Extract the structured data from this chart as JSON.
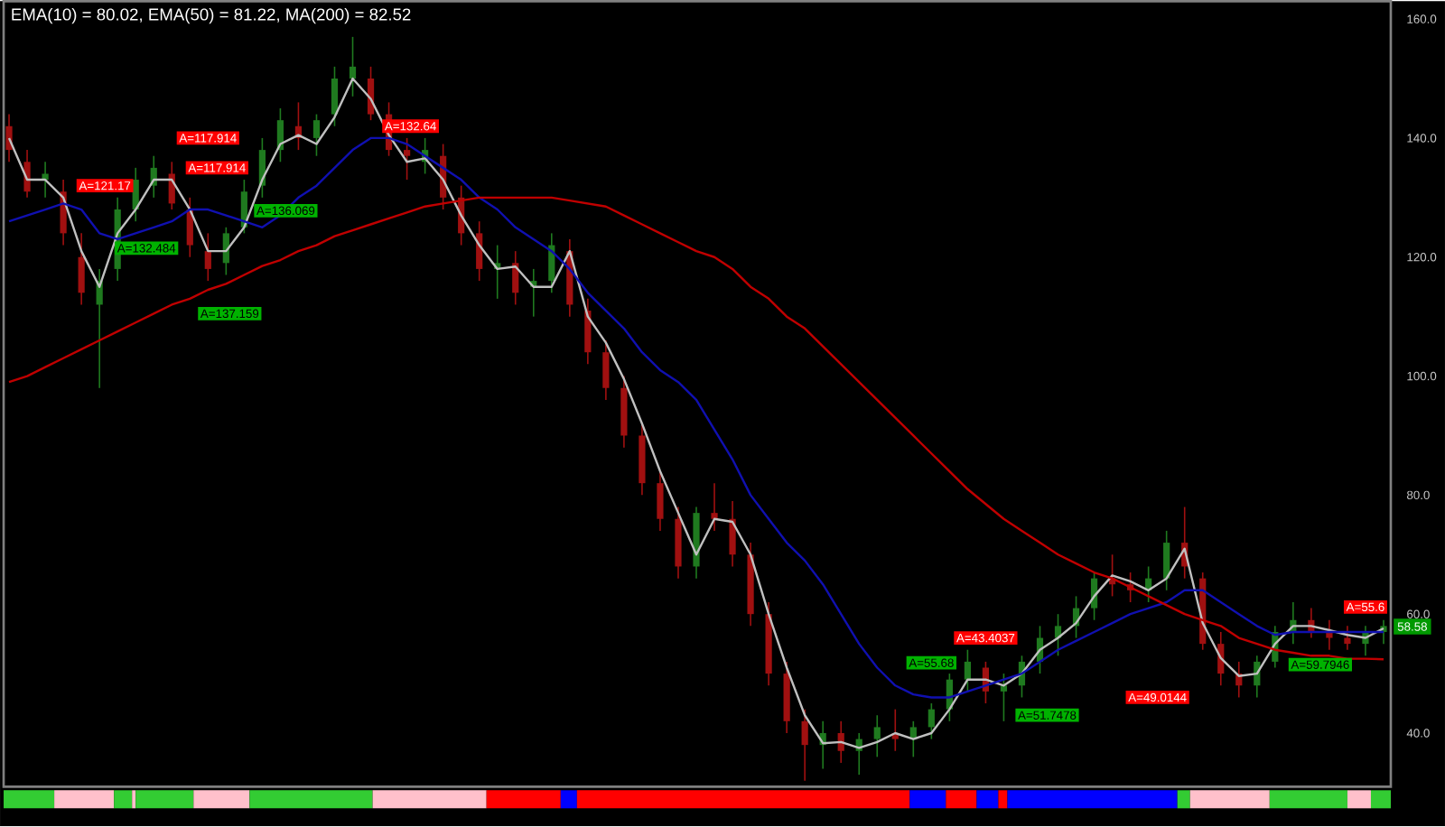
{
  "chart_data": {
    "type": "candlestick",
    "title": "EMA(10) = 80.02, EMA(50) = 81.22, MA(200) = 82.52",
    "categories": [
      null,
      null,
      null,
      null,
      null,
      null,
      null,
      null,
      null,
      null,
      null,
      null,
      null,
      null,
      null,
      null,
      null,
      null,
      null,
      null,
      null,
      null,
      null,
      null,
      null,
      null,
      null,
      null,
      null,
      null,
      null,
      null,
      null,
      null,
      null,
      null,
      null,
      null,
      null,
      null,
      null,
      null,
      null,
      null,
      null,
      null,
      null,
      null,
      null,
      null,
      null,
      null,
      null,
      null,
      null,
      null,
      null,
      null,
      null,
      null,
      null,
      null,
      null,
      null,
      null,
      null,
      null,
      null,
      null,
      null,
      null,
      null,
      null,
      null,
      null,
      null,
      null
    ],
    "ohlc": [
      [
        142,
        144,
        136,
        138
      ],
      [
        136,
        138,
        130,
        131
      ],
      [
        133,
        136,
        130,
        134
      ],
      [
        131,
        133,
        122,
        124
      ],
      [
        120,
        124,
        112,
        114
      ],
      [
        112,
        118,
        98,
        116
      ],
      [
        118,
        130,
        116,
        128
      ],
      [
        128,
        135,
        126,
        133
      ],
      [
        132,
        137,
        130,
        135
      ],
      [
        134,
        136,
        128,
        129
      ],
      [
        128,
        130,
        120,
        122
      ],
      [
        121,
        124,
        116,
        118
      ],
      [
        119,
        125,
        117,
        124
      ],
      [
        125,
        133,
        124,
        131
      ],
      [
        132,
        140,
        130,
        138
      ],
      [
        138,
        145,
        136,
        143
      ],
      [
        142,
        146,
        138,
        140
      ],
      [
        140,
        144,
        137,
        143
      ],
      [
        144,
        152,
        142,
        150
      ],
      [
        150,
        157,
        147,
        152
      ],
      [
        150,
        152,
        143,
        144
      ],
      [
        144,
        146,
        137,
        138
      ],
      [
        138,
        140,
        133,
        137
      ],
      [
        136,
        140,
        134,
        138
      ],
      [
        137,
        139,
        128,
        130
      ],
      [
        130,
        132,
        122,
        124
      ],
      [
        124,
        126,
        116,
        118
      ],
      [
        118,
        122,
        113,
        119
      ],
      [
        119,
        121,
        112,
        114
      ],
      [
        115,
        118,
        110,
        116
      ],
      [
        116,
        124,
        114,
        122
      ],
      [
        121,
        123,
        110,
        112
      ],
      [
        111,
        113,
        102,
        104
      ],
      [
        104,
        106,
        96,
        98
      ],
      [
        98,
        100,
        88,
        90
      ],
      [
        90,
        92,
        80,
        82
      ],
      [
        82,
        84,
        74,
        76
      ],
      [
        76,
        78,
        66,
        68
      ],
      [
        68,
        78,
        66,
        77
      ],
      [
        77,
        82,
        74,
        76
      ],
      [
        76,
        79,
        68,
        70
      ],
      [
        70,
        72,
        58,
        60
      ],
      [
        60,
        62,
        48,
        50
      ],
      [
        50,
        52,
        40,
        42
      ],
      [
        42,
        44,
        32,
        38
      ],
      [
        38,
        42,
        34,
        40
      ],
      [
        40,
        42,
        35,
        37
      ],
      [
        37,
        40,
        33,
        39
      ],
      [
        39,
        43,
        36,
        41
      ],
      [
        40,
        44,
        37,
        39
      ],
      [
        39,
        42,
        36,
        41
      ],
      [
        41,
        45,
        39,
        44
      ],
      [
        44,
        50,
        42,
        49
      ],
      [
        49,
        54,
        47,
        52
      ],
      [
        51,
        52,
        45,
        47
      ],
      [
        47,
        50,
        42,
        48
      ],
      [
        48,
        53,
        46,
        52
      ],
      [
        52,
        58,
        50,
        56
      ],
      [
        56,
        60,
        53,
        58
      ],
      [
        58,
        63,
        56,
        61
      ],
      [
        61,
        67,
        59,
        66
      ],
      [
        66,
        70,
        63,
        65
      ],
      [
        65,
        67,
        62,
        64
      ],
      [
        64,
        68,
        62,
        66
      ],
      [
        66,
        74,
        64,
        72
      ],
      [
        72,
        78,
        66,
        68
      ],
      [
        66,
        67,
        54,
        55
      ],
      [
        55,
        57,
        48,
        50
      ],
      [
        50,
        52,
        46,
        48
      ],
      [
        48,
        53,
        46,
        52
      ],
      [
        52,
        58,
        51,
        57
      ],
      [
        57,
        62,
        55,
        59
      ],
      [
        59,
        61,
        56,
        57
      ],
      [
        57,
        59,
        54,
        56
      ],
      [
        56,
        58,
        54,
        55
      ],
      [
        55,
        58,
        53,
        57
      ],
      [
        57,
        59,
        55,
        58
      ]
    ],
    "series": [
      {
        "type": "line",
        "color": "#c0c0c0",
        "values": [
          140,
          133,
          133,
          130,
          121,
          115,
          124,
          128,
          133,
          133,
          128,
          121,
          121,
          125,
          133,
          139,
          140.5,
          139,
          143.5,
          150,
          146.6,
          140.5,
          136,
          136.6,
          133,
          127,
          122,
          118,
          118.4,
          115,
          115,
          121,
          110,
          105.6,
          99.5,
          92,
          84,
          77,
          70,
          76,
          75.5,
          70,
          60,
          51,
          43,
          38.3,
          38.5,
          37.5,
          38.5,
          40,
          39,
          40,
          44,
          49,
          49,
          48,
          50,
          54,
          56,
          58.5,
          63,
          66.5,
          65.5,
          64,
          66,
          71,
          58.5,
          52.6,
          49.6,
          50,
          55,
          58,
          58,
          57.3,
          56.5,
          56,
          57.6
        ]
      },
      {
        "type": "line",
        "color": "#1010b0",
        "values": [
          126,
          127,
          128,
          129,
          128,
          124,
          123,
          124,
          125,
          126,
          128,
          128,
          127,
          126,
          125,
          127,
          130,
          132,
          135,
          138,
          140,
          140,
          139,
          137,
          135,
          133,
          130,
          128,
          125,
          123,
          121,
          118,
          114,
          111,
          108,
          104,
          101,
          99,
          96,
          91,
          86,
          80,
          76,
          72,
          69,
          65,
          60,
          55,
          51,
          48,
          46.5,
          46,
          46,
          47,
          48,
          49,
          50,
          52,
          54,
          55.5,
          57,
          58.5,
          60,
          61,
          62,
          64,
          64,
          62,
          60,
          58,
          56.5,
          57,
          57,
          57,
          57,
          57,
          57
        ]
      },
      {
        "type": "line",
        "color": "#c00000",
        "values": [
          99,
          100,
          101.5,
          103,
          104.5,
          106,
          107.5,
          109,
          110.5,
          112,
          113,
          114.5,
          115.5,
          117,
          118.5,
          119.5,
          121,
          122,
          123.5,
          124.5,
          125.5,
          126.5,
          127.5,
          128.5,
          129,
          129.5,
          130,
          130,
          130,
          130,
          130,
          129.5,
          129,
          128.5,
          127,
          125.5,
          124,
          122.5,
          121,
          120,
          118,
          115,
          113,
          110,
          108,
          105,
          102,
          99,
          96,
          93,
          90,
          87,
          84,
          81,
          78.5,
          76,
          74,
          72,
          70,
          68.5,
          67,
          66,
          64.5,
          63,
          61.5,
          60,
          59,
          58,
          56,
          55,
          54,
          53.5,
          53,
          53,
          52.5,
          52.5,
          52.4
        ]
      }
    ],
    "ylim": [
      31,
      163
    ],
    "yticks": [
      {
        "value": 40,
        "label": "40.0"
      },
      {
        "value": 60,
        "label": "60.0"
      },
      {
        "value": 80,
        "label": "80.0"
      },
      {
        "value": 100,
        "label": "100.0"
      },
      {
        "value": 120,
        "label": "120.0"
      },
      {
        "value": 140,
        "label": "140.0"
      },
      {
        "value": 160,
        "label": "160.0"
      }
    ],
    "tick_labels": "y",
    "grid": false,
    "annotations": [
      "A=121.17",
      "A=132.484",
      "A=117.914",
      "A=117.914",
      "A=137.159",
      "A=136.069",
      "A=132.64",
      "A=55.68",
      "A=43.4037",
      "A=51.7478",
      "A=49.0144",
      "A=59.7946",
      "A=55.6",
      "58.58"
    ]
  }
}
